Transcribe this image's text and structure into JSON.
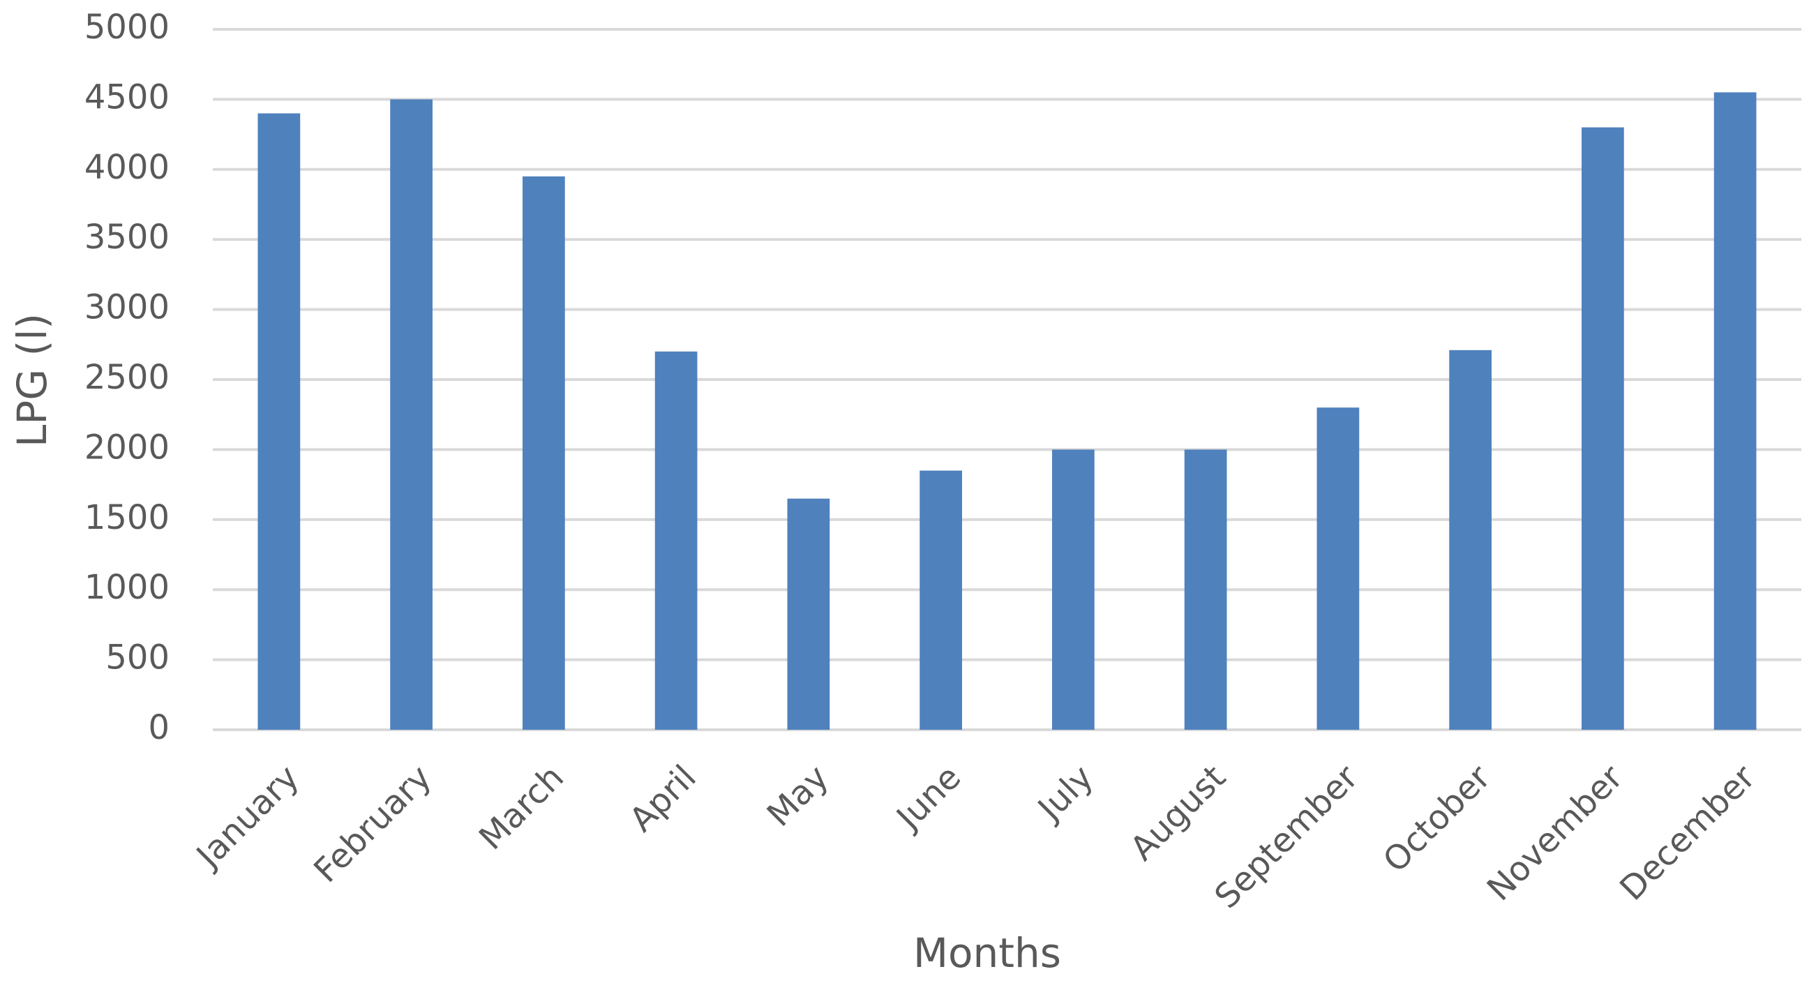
{
  "chart_data": {
    "type": "bar",
    "x_label": "Months",
    "y_label": "LPG (l)",
    "categories": [
      "January",
      "February",
      "March",
      "April",
      "May",
      "June",
      "July",
      "August",
      "September",
      "October",
      "November",
      "December"
    ],
    "values": [
      4400,
      4500,
      3950,
      2700,
      1650,
      1850,
      2000,
      2000,
      2300,
      2710,
      4300,
      4550
    ],
    "color": "#4f81bd",
    "ylim": [
      0,
      5000
    ],
    "yticks": [
      0,
      500,
      1000,
      1500,
      2000,
      2500,
      3000,
      3500,
      4000,
      4500,
      5000
    ],
    "grid": true
  }
}
